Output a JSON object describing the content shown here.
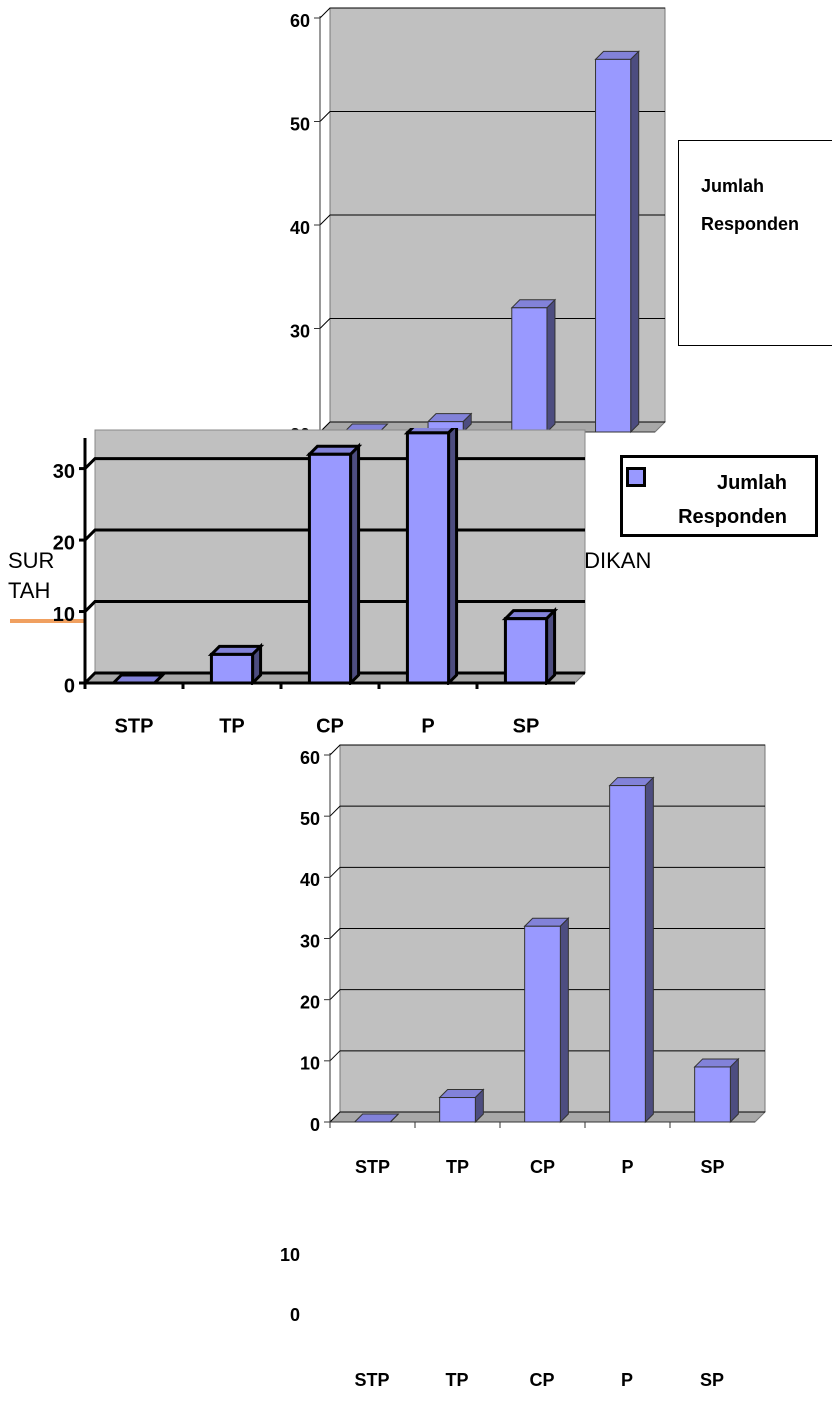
{
  "chart_data": [
    {
      "type": "bar",
      "categories": [
        null,
        null,
        null,
        null
      ],
      "series": [
        {
          "name": "Jumlah Responden",
          "color": "#9999ff",
          "values": [
            20,
            21,
            32,
            56
          ]
        }
      ],
      "ylim": [
        20,
        60
      ],
      "yticks": [
        20,
        30,
        40,
        50,
        60
      ],
      "grid": true,
      "legend": "right"
    },
    {
      "type": "bar",
      "categories": [
        "STP",
        "TP",
        "CP",
        "P",
        "SP"
      ],
      "series": [
        {
          "name": "Jumlah Responden",
          "color": "#9999ff",
          "values": [
            0,
            4,
            32,
            35,
            9
          ]
        }
      ],
      "ylim": [
        0,
        34
      ],
      "yticks": [
        0,
        10,
        20,
        30
      ],
      "grid": true,
      "legend": "right"
    },
    {
      "type": "bar",
      "categories": [
        "STP",
        "TP",
        "CP",
        "P",
        "SP"
      ],
      "color": "#9999ff",
      "values": [
        0,
        4,
        32,
        55,
        9
      ],
      "ylim": [
        0,
        60
      ],
      "yticks": [
        0,
        10,
        20,
        30,
        40,
        50,
        60
      ],
      "grid": true
    }
  ],
  "background_text": [
    "SUR",
    "IDIKAN",
    "TAH"
  ],
  "axis_fragment": {
    "yticks": [
      0,
      10
    ],
    "categories": [
      "STP",
      "TP",
      "CP",
      "P",
      "SP"
    ]
  }
}
